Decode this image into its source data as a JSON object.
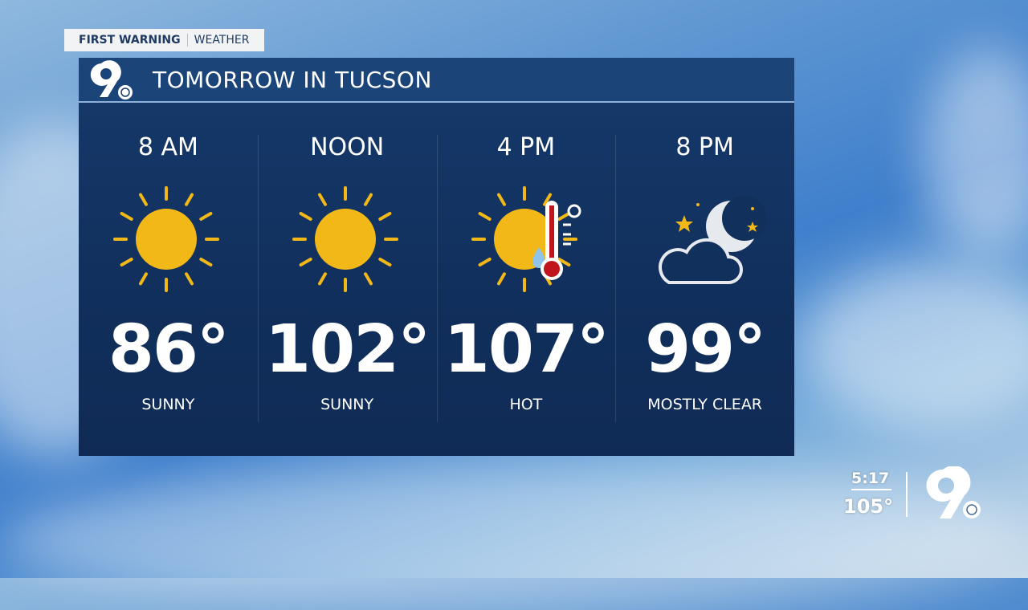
{
  "brand": {
    "first": "FIRST WARNING",
    "second": "WEATHER"
  },
  "header": {
    "logo": "9 abc",
    "title": "TOMORROW IN TUCSON"
  },
  "forecast": [
    {
      "time": "8 AM",
      "icon": "sun-icon",
      "temp": "86°",
      "condition": "SUNNY"
    },
    {
      "time": "NOON",
      "icon": "sun-icon",
      "temp": "102°",
      "condition": "SUNNY"
    },
    {
      "time": "4 PM",
      "icon": "hot-sun-thermometer-icon",
      "temp": "107°",
      "condition": "HOT"
    },
    {
      "time": "8 PM",
      "icon": "moon-cloud-icon",
      "temp": "99°",
      "condition": "MOSTLY CLEAR"
    }
  ],
  "bug": {
    "time": "5:17",
    "temp": "105°",
    "logo": "9 abc"
  },
  "colors": {
    "panel": "#112f5c",
    "sun": "#f2b817",
    "thermometer": "#c0151c",
    "accent": "#8fb0d8"
  }
}
